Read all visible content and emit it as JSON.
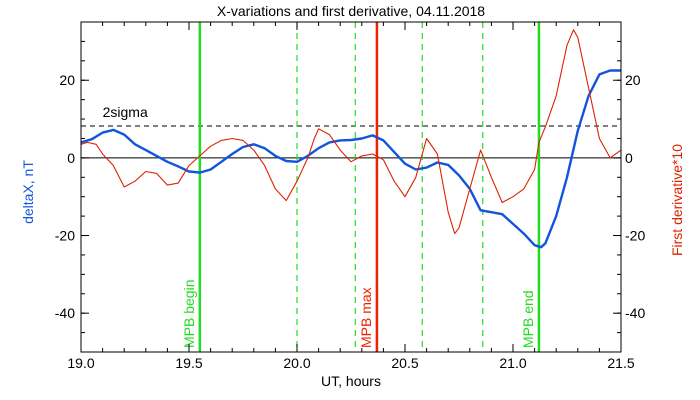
{
  "chart_data": {
    "type": "line",
    "title": "X-variations and first derivative, 04.11.2018",
    "xlabel": "UT, hours",
    "ylabel": "deltaX, nT",
    "y2label": "First derivative*10",
    "xlim": [
      19.0,
      21.5
    ],
    "ylim": [
      -50,
      35
    ],
    "y2lim": [
      -50,
      35
    ],
    "xticks": [
      "19.0",
      "19.5",
      "20.0",
      "20.5",
      "21.0",
      "21.5"
    ],
    "yticks": [
      "-40",
      "-20",
      "0",
      "20"
    ],
    "y2ticks": [
      "-40",
      "-20",
      "0",
      "20"
    ],
    "grid": false,
    "annotations": [
      {
        "text": "2sigma",
        "x": 19.1,
        "y": 10.5
      }
    ],
    "reference_lines": [
      {
        "name": "zero",
        "y": 0,
        "style": "solid",
        "color": "#000000"
      },
      {
        "name": "2sigma",
        "y": 8.2,
        "style": "dashed",
        "color": "#000000"
      }
    ],
    "markers": [
      {
        "x": 19.55,
        "label": "MPB begin",
        "color": "#22dd22",
        "style": "solid"
      },
      {
        "x": 20.0,
        "label": "",
        "color": "#22dd22",
        "style": "dashed"
      },
      {
        "x": 20.27,
        "label": "",
        "color": "#22dd22",
        "style": "dashed"
      },
      {
        "x": 20.37,
        "label": "MPB max",
        "color": "#ee2200",
        "style": "solid"
      },
      {
        "x": 20.58,
        "label": "",
        "color": "#22dd22",
        "style": "dashed"
      },
      {
        "x": 20.86,
        "label": "",
        "color": "#22dd22",
        "style": "dashed"
      },
      {
        "x": 21.12,
        "label": "MPB end",
        "color": "#22dd22",
        "style": "solid"
      }
    ],
    "series": [
      {
        "axis": "left",
        "color": "#1155dd",
        "x": [
          19.0,
          19.05,
          19.1,
          19.15,
          19.2,
          19.25,
          19.3,
          19.35,
          19.4,
          19.45,
          19.5,
          19.55,
          19.6,
          19.65,
          19.7,
          19.75,
          19.8,
          19.85,
          19.9,
          19.95,
          20.0,
          20.05,
          20.1,
          20.15,
          20.2,
          20.25,
          20.3,
          20.35,
          20.4,
          20.45,
          20.5,
          20.55,
          20.6,
          20.65,
          20.7,
          20.75,
          20.8,
          20.85,
          20.9,
          20.95,
          21.0,
          21.05,
          21.1,
          21.13,
          21.15,
          21.2,
          21.25,
          21.3,
          21.35,
          21.4,
          21.45,
          21.5
        ],
        "values": [
          4.0,
          4.8,
          6.5,
          7.2,
          6.0,
          3.5,
          2.0,
          0.5,
          -1.0,
          -2.2,
          -3.5,
          -3.8,
          -3.0,
          -1.0,
          1.0,
          2.8,
          3.5,
          2.5,
          0.5,
          -0.8,
          -1.0,
          0.5,
          2.5,
          4.0,
          4.5,
          4.6,
          5.0,
          5.8,
          4.5,
          1.5,
          -1.5,
          -3.0,
          -2.5,
          -1.2,
          -1.8,
          -4.5,
          -8.0,
          -13.5,
          -14.0,
          -14.5,
          -17.0,
          -19.5,
          -22.5,
          -23.0,
          -22.0,
          -15.0,
          -5.0,
          7.0,
          16.0,
          21.5,
          22.5,
          22.5
        ]
      },
      {
        "axis": "right",
        "color": "#dd2200",
        "x": [
          19.0,
          19.03,
          19.07,
          19.1,
          19.15,
          19.2,
          19.25,
          19.3,
          19.35,
          19.4,
          19.45,
          19.5,
          19.55,
          19.6,
          19.65,
          19.7,
          19.75,
          19.8,
          19.85,
          19.9,
          19.95,
          20.0,
          20.05,
          20.08,
          20.1,
          20.15,
          20.2,
          20.25,
          20.3,
          20.35,
          20.4,
          20.45,
          20.5,
          20.55,
          20.6,
          20.65,
          20.7,
          20.73,
          20.75,
          20.8,
          20.85,
          20.9,
          20.95,
          21.0,
          21.05,
          21.1,
          21.12,
          21.15,
          21.2,
          21.25,
          21.28,
          21.3,
          21.35,
          21.4,
          21.45,
          21.5
        ],
        "values": [
          3.5,
          4.0,
          3.5,
          1.0,
          -2.0,
          -7.5,
          -6.0,
          -3.5,
          -4.0,
          -7.0,
          -6.5,
          -2.0,
          0.5,
          3.0,
          4.5,
          5.0,
          4.5,
          2.0,
          -2.0,
          -8.0,
          -11.0,
          -6.0,
          0.0,
          5.0,
          7.5,
          6.0,
          2.0,
          -1.0,
          0.5,
          1.0,
          -0.5,
          -6.0,
          -10.0,
          -5.0,
          5.0,
          1.0,
          -14.0,
          -19.5,
          -18.0,
          -8.0,
          2.0,
          -5.0,
          -11.5,
          -10.0,
          -8.0,
          -3.0,
          4.0,
          8.0,
          16.0,
          29.0,
          33.0,
          31.0,
          18.0,
          5.0,
          0.0,
          2.0
        ]
      }
    ]
  }
}
